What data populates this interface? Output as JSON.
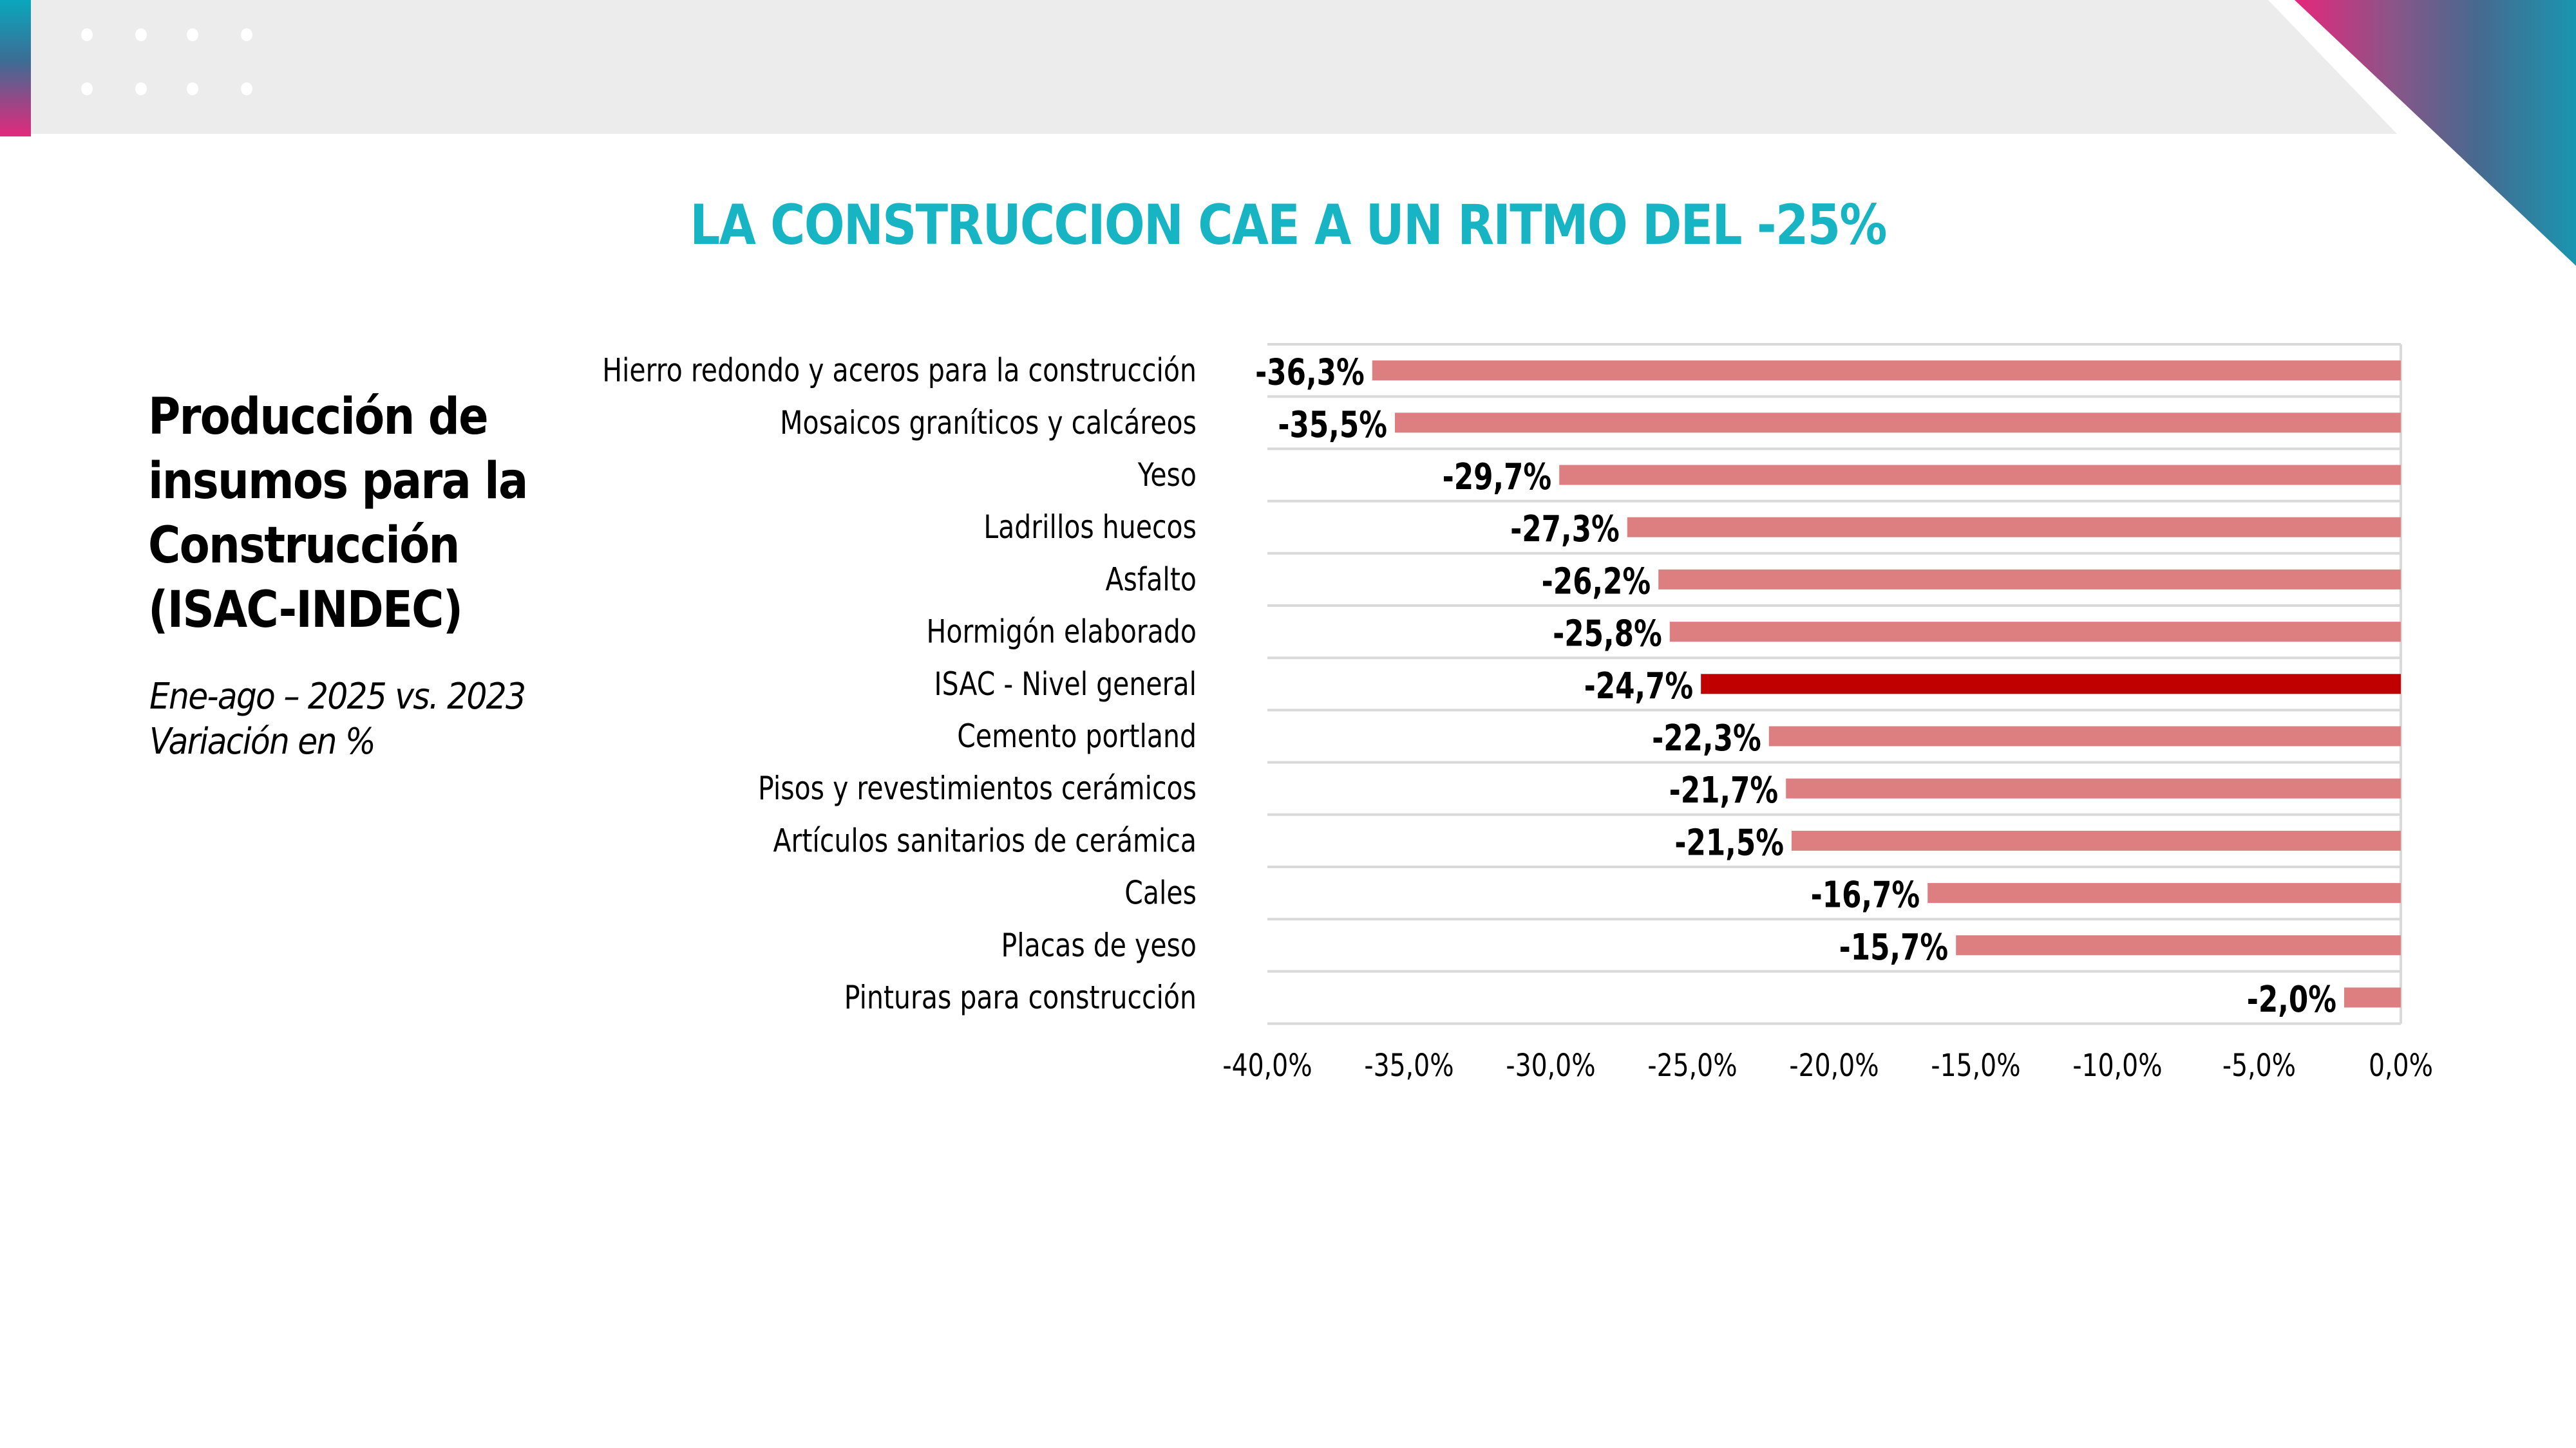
{
  "slide": {
    "title": "LA CONSTRUCCION CAE A UN RITMO DEL -25%",
    "heading_lines": [
      "Producción de",
      "insumos para la",
      "Construcción",
      "(ISAC-INDEC)"
    ],
    "subtitle_lines": [
      "Ene-ago – 2025 vs. 2023",
      "Variación en %"
    ]
  },
  "colors": {
    "title": "#17b4c4",
    "bar": "#dd7f81",
    "bar_highlight": "#c00000",
    "gridline": "#d9d9d9"
  },
  "chart_data": {
    "type": "bar",
    "orientation": "horizontal",
    "title": "Producción de insumos para la Construcción (ISAC-INDEC)",
    "subtitle": "Ene-ago – 2025 vs. 2023 · Variación en %",
    "xlabel": "",
    "ylabel": "",
    "xlim": [
      -40,
      0
    ],
    "x_ticks": [
      -40,
      -35,
      -30,
      -25,
      -20,
      -15,
      -10,
      -5,
      0
    ],
    "x_tick_labels": [
      "-40,0%",
      "-35,0%",
      "-30,0%",
      "-25,0%",
      "-20,0%",
      "-15,0%",
      "-10,0%",
      "-5,0%",
      "0,0%"
    ],
    "grid": true,
    "legend": "none",
    "highlight_category": "ISAC - Nivel general",
    "categories": [
      "Hierro redondo y aceros para la construcción",
      "Mosaicos graníticos y calcáreos",
      "Yeso",
      "Ladrillos huecos",
      "Asfalto",
      "Hormigón elaborado",
      "ISAC - Nivel general",
      "Cemento portland",
      "Pisos y revestimientos cerámicos",
      "Artículos sanitarios de cerámica",
      "Cales",
      "Placas de yeso",
      "Pinturas para construcción"
    ],
    "values": [
      -36.3,
      -35.5,
      -29.7,
      -27.3,
      -26.2,
      -25.8,
      -24.7,
      -22.3,
      -21.7,
      -21.5,
      -16.7,
      -15.7,
      -2.0
    ],
    "value_labels": [
      "-36,3%",
      "-35,5%",
      "-29,7%",
      "-27,3%",
      "-26,2%",
      "-25,8%",
      "-24,7%",
      "-22,3%",
      "-21,7%",
      "-21,5%",
      "-16,7%",
      "-15,7%",
      "-2,0%"
    ]
  }
}
